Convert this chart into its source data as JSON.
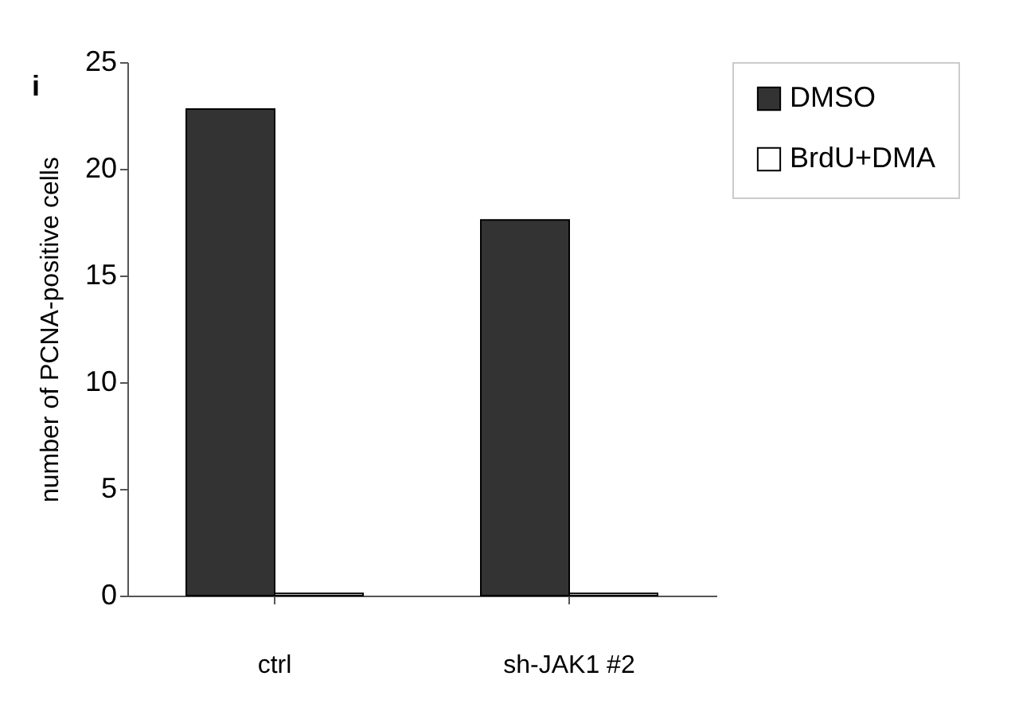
{
  "chart_data": {
    "type": "bar",
    "title": "i",
    "ylabel": "number of PCNA-positive cells",
    "categories": [
      "ctrl",
      "sh-JAK1 #2"
    ],
    "series": [
      {
        "name": "DMSO",
        "color": "#333333",
        "values": [
          22.8,
          17.6
        ]
      },
      {
        "name": "BrdU+DMA",
        "color": "#ffffff",
        "values": [
          0.1,
          0.1
        ]
      }
    ],
    "ylim": [
      0,
      25
    ],
    "yticks": [
      0,
      5,
      10,
      15,
      20,
      25
    ],
    "grid": false,
    "legend": "top right"
  }
}
